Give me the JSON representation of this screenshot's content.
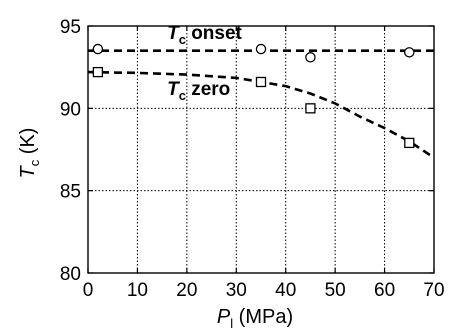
{
  "chart_data": {
    "type": "scatter",
    "xlabel": {
      "main": "P",
      "sub": "l",
      "unit": " (MPa)"
    },
    "ylabel": {
      "main": "T",
      "sub": "c",
      "unit": " (K)"
    },
    "xlim": [
      0,
      70
    ],
    "ylim": [
      80,
      95
    ],
    "x_ticks": [
      "0",
      "10",
      "20",
      "30",
      "40",
      "50",
      "60",
      "70"
    ],
    "y_ticks": [
      "80",
      "85",
      "90",
      "95"
    ],
    "grid": true,
    "series": [
      {
        "name": "onset",
        "marker": "circle",
        "x": [
          2,
          35,
          45,
          65
        ],
        "y": [
          93.6,
          93.6,
          93.1,
          93.4
        ],
        "fit_line": {
          "style": "dashed",
          "x": [
            0,
            70
          ],
          "y": [
            93.5,
            93.5
          ]
        }
      },
      {
        "name": "zero",
        "marker": "square",
        "x": [
          2,
          35,
          45,
          65
        ],
        "y": [
          92.2,
          91.6,
          90.0,
          87.9
        ],
        "fit_line": {
          "style": "dashed",
          "x": [
            0,
            10,
            20,
            30,
            40,
            45,
            50,
            55,
            60,
            65,
            70
          ],
          "y": [
            92.2,
            92.15,
            92.05,
            91.85,
            91.35,
            90.9,
            90.3,
            89.5,
            88.8,
            88.0,
            87.0
          ]
        }
      }
    ],
    "annotations": [
      {
        "text_main": "T",
        "text_sub": "c",
        "text_rest": " onset",
        "x": 16,
        "y": 94.2
      },
      {
        "text_main": "T",
        "text_sub": "c",
        "text_rest": " zero",
        "x": 16,
        "y": 90.8
      }
    ]
  }
}
